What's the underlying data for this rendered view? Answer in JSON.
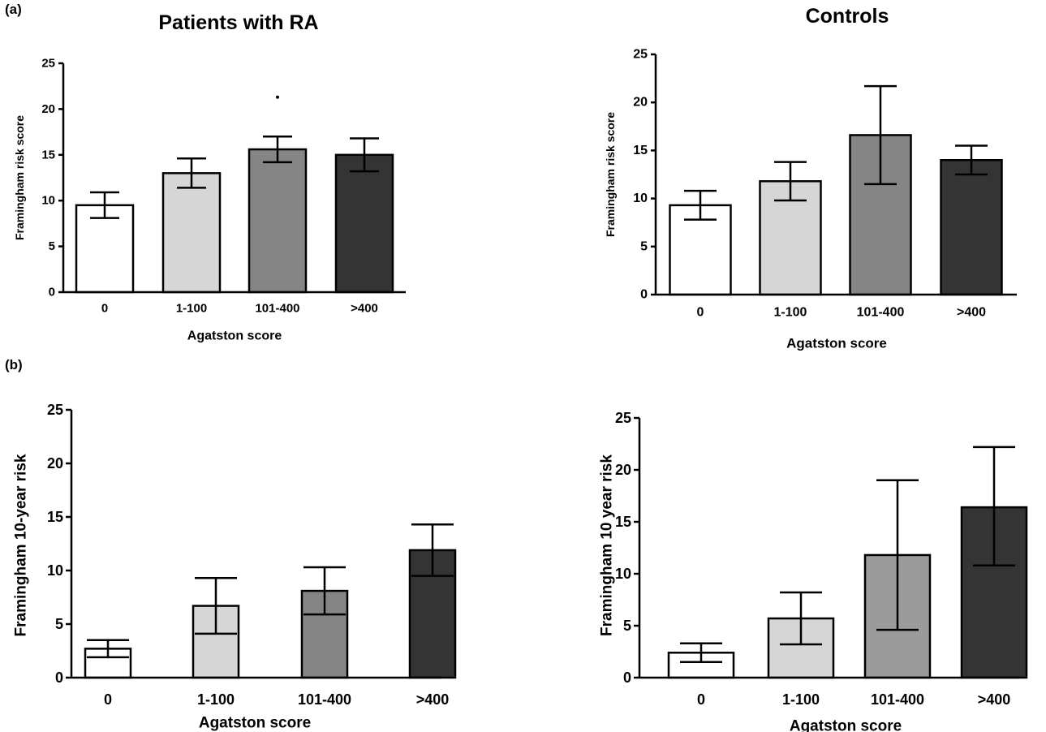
{
  "panels": [
    {
      "label": "(a)"
    },
    {
      "label": "(b)"
    }
  ],
  "colors": {
    "bar0": "#ffffff",
    "bar1": "#d6d6d6",
    "bar2": "#858585",
    "bar3": "#343434",
    "bar2_controls_b": "#9b9b9b",
    "axis": "#000000"
  },
  "chart_data": [
    {
      "type": "bar",
      "panel": "(a)",
      "title": "Patients with RA",
      "xlabel": "Agatston score",
      "ylabel": "Framingham risk score",
      "categories": [
        "0",
        "1-100",
        "101-400",
        ">400"
      ],
      "values": [
        9.5,
        13.0,
        15.6,
        15.0
      ],
      "error_low": [
        8.1,
        11.4,
        14.2,
        13.2
      ],
      "error_high": [
        10.9,
        14.6,
        17.0,
        16.8
      ],
      "outliers": [
        {
          "category": "101-400",
          "value": 21.3
        }
      ],
      "ylim": [
        0,
        25
      ],
      "yticks": [
        "0",
        "5",
        "10",
        "15",
        "20",
        "25"
      ],
      "bar_colors": [
        "#ffffff",
        "#d6d6d6",
        "#858585",
        "#343434"
      ],
      "grid": false
    },
    {
      "type": "bar",
      "panel": "(a)",
      "title": "Controls",
      "xlabel": "Agatston score",
      "ylabel": "Framingham risk score",
      "categories": [
        "0",
        "1-100",
        "101-400",
        ">400"
      ],
      "values": [
        9.3,
        11.8,
        16.6,
        14.0
      ],
      "error_low": [
        7.8,
        9.8,
        11.5,
        12.5
      ],
      "error_high": [
        10.8,
        13.8,
        21.7,
        15.5
      ],
      "outliers": [],
      "ylim": [
        0,
        25
      ],
      "yticks": [
        "0",
        "5",
        "10",
        "15",
        "20",
        "25"
      ],
      "bar_colors": [
        "#ffffff",
        "#d6d6d6",
        "#858585",
        "#343434"
      ],
      "grid": false
    },
    {
      "type": "bar",
      "panel": "(b)",
      "title": "",
      "xlabel": "Agatston score",
      "ylabel": "Framingham 10-year risk",
      "categories": [
        "0",
        "1-100",
        "101-400",
        ">400"
      ],
      "values": [
        2.7,
        6.7,
        8.1,
        11.9
      ],
      "error_low": [
        1.9,
        4.1,
        5.9,
        9.5
      ],
      "error_high": [
        3.5,
        9.3,
        10.3,
        14.3
      ],
      "outliers": [],
      "ylim": [
        0,
        25
      ],
      "yticks": [
        "0",
        "5",
        "10",
        "15",
        "20",
        "25"
      ],
      "bar_colors": [
        "#ffffff",
        "#d6d6d6",
        "#858585",
        "#343434"
      ],
      "grid": false
    },
    {
      "type": "bar",
      "panel": "(b)",
      "title": "",
      "xlabel": "Agatston score",
      "ylabel": "Framingham 10 year risk",
      "categories": [
        "0",
        "1-100",
        "101-400",
        ">400"
      ],
      "values": [
        2.4,
        5.7,
        11.8,
        16.4
      ],
      "error_low": [
        1.5,
        3.2,
        4.6,
        10.8
      ],
      "error_high": [
        3.3,
        8.2,
        19.0,
        22.2
      ],
      "outliers": [],
      "ylim": [
        0,
        25
      ],
      "yticks": [
        "0",
        "5",
        "10",
        "15",
        "20",
        "25"
      ],
      "bar_colors": [
        "#ffffff",
        "#d6d6d6",
        "#9b9b9b",
        "#343434"
      ],
      "grid": false
    }
  ]
}
